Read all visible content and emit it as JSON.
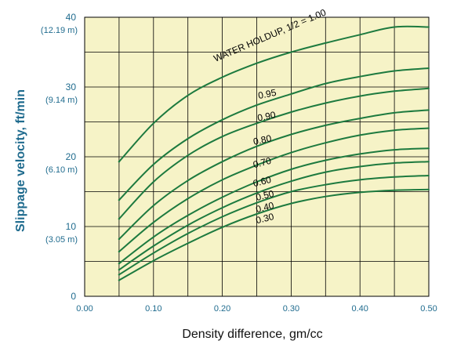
{
  "chart_data": {
    "type": "line",
    "title": "",
    "xlabel": "Density difference, gm/cc",
    "ylabel": "Slippage velocity, ft/min",
    "xlim": [
      0,
      0.5
    ],
    "ylim": [
      0,
      40
    ],
    "grid": true,
    "x_ticks": [
      "0.00",
      "0.10",
      "0.20",
      "0.30",
      "0.40",
      "0.50"
    ],
    "y_ticks": [
      {
        "value": 0,
        "label": "0",
        "metric": ""
      },
      {
        "value": 10,
        "label": "10",
        "metric": "(3.05 m)"
      },
      {
        "value": 20,
        "label": "20",
        "metric": "(6.10 m)"
      },
      {
        "value": 30,
        "label": "30",
        "metric": "(9.14 m)"
      },
      {
        "value": 40,
        "label": "40",
        "metric": "(12.19 m)"
      }
    ],
    "x": [
      0.05,
      0.1,
      0.15,
      0.2,
      0.25,
      0.3,
      0.35,
      0.4,
      0.45,
      0.5
    ],
    "series": [
      {
        "name": "WATER HOLDUP, 1/2 = 1.00",
        "values": [
          19.3,
          24.8,
          28.8,
          31.4,
          33.4,
          35.0,
          36.3,
          37.5,
          38.6,
          38.6
        ]
      },
      {
        "name": "0.95",
        "values": [
          13.8,
          18.9,
          22.6,
          25.3,
          27.4,
          29.0,
          30.5,
          31.5,
          32.3,
          32.7
        ]
      },
      {
        "name": "0.90",
        "values": [
          11.1,
          16.4,
          20.2,
          22.9,
          24.8,
          26.4,
          27.7,
          28.7,
          29.4,
          29.8
        ]
      },
      {
        "name": "0.80",
        "values": [
          8.2,
          13.0,
          16.6,
          19.3,
          21.5,
          23.2,
          24.5,
          25.5,
          26.3,
          26.7
        ]
      },
      {
        "name": "0.70",
        "values": [
          6.4,
          10.6,
          14.0,
          16.7,
          18.8,
          20.6,
          22.0,
          23.1,
          23.8,
          24.1
        ]
      },
      {
        "name": "0.60",
        "values": [
          4.7,
          8.5,
          11.6,
          14.2,
          16.4,
          18.2,
          19.5,
          20.4,
          21.0,
          21.2
        ]
      },
      {
        "name": "0.50",
        "values": [
          3.8,
          7.2,
          10.2,
          12.7,
          14.8,
          16.5,
          17.8,
          18.6,
          19.1,
          19.3
        ]
      },
      {
        "name": "0.40",
        "values": [
          3.1,
          6.2,
          9.0,
          11.4,
          13.4,
          15.0,
          16.0,
          16.7,
          17.1,
          17.3
        ]
      },
      {
        "name": "0.30",
        "values": [
          2.3,
          5.1,
          7.6,
          9.9,
          11.8,
          13.3,
          14.3,
          14.9,
          15.2,
          15.3
        ]
      }
    ],
    "curve_labels": [
      {
        "text": "WATER HOLDUP, 1/2 = 1.00",
        "x": 0.19,
        "y": 33.6,
        "angle": -23
      },
      {
        "text": "0.95",
        "x": 0.253,
        "y": 28.3,
        "angle": -11
      },
      {
        "text": "0.90",
        "x": 0.252,
        "y": 25.1,
        "angle": -11
      },
      {
        "text": "0.80",
        "x": 0.246,
        "y": 21.7,
        "angle": -12
      },
      {
        "text": "0.70",
        "x": 0.246,
        "y": 18.4,
        "angle": -14
      },
      {
        "text": "0.60",
        "x": 0.246,
        "y": 15.7,
        "angle": -14
      },
      {
        "text": "0.50",
        "x": 0.25,
        "y": 13.7,
        "angle": -14
      },
      {
        "text": "0.40",
        "x": 0.25,
        "y": 12.0,
        "angle": -14
      },
      {
        "text": "0.30",
        "x": 0.25,
        "y": 10.4,
        "angle": -14
      }
    ],
    "colors": {
      "background": "#f6f3c7",
      "grid": "#000000",
      "curve": "#1d7a3f",
      "tick_text": "#1f6b8e"
    }
  }
}
